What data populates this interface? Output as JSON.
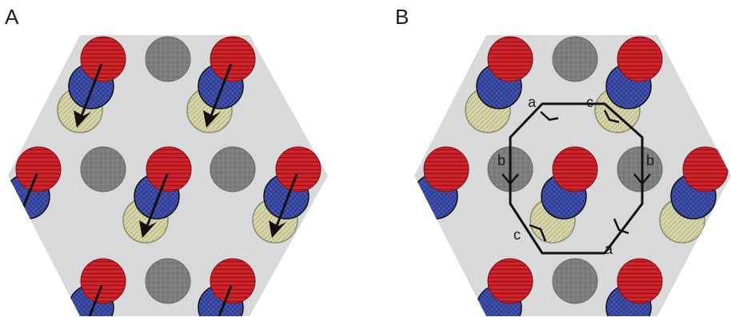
{
  "figure": {
    "panel_a": {
      "label": "A"
    },
    "panel_b": {
      "label": "B",
      "edge_labels": [
        "a",
        "c",
        "b",
        "b",
        "c",
        "a"
      ]
    }
  },
  "colors": {
    "background_hex": "#d8d9db",
    "red": "#d2232a",
    "blue": "#2e3d93",
    "gray": "#777879",
    "tan": "#d6d6a8",
    "outline": "#111111"
  }
}
